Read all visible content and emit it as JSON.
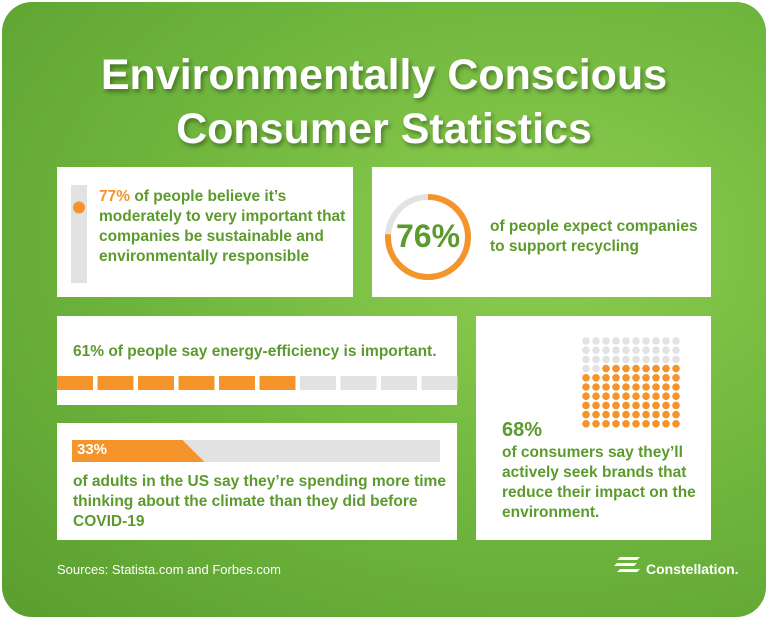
{
  "title": "Environmentally Conscious Consumer Statistics",
  "stats": [
    {
      "value": 77,
      "value_label": "77%",
      "text": "of people believe it’s moderately to very important that companies be sustainable and environmentally responsible"
    },
    {
      "value": 76,
      "value_label": "76%",
      "text": "of people expect companies to support recycling"
    },
    {
      "value": 61,
      "value_label": "61%",
      "text": "of people say energy-efficiency is important."
    },
    {
      "value": 33,
      "value_label": "33%",
      "text": "of adults in the US say they’re spending more time thinking about the climate than they did before COVID-19"
    },
    {
      "value": 68,
      "value_label": "68%",
      "text": "of consumers say they’ll actively seek brands that reduce their impact on the environment."
    }
  ],
  "sources": "Sources: Statista.com and Forbes.com",
  "brand": "Constellation."
}
